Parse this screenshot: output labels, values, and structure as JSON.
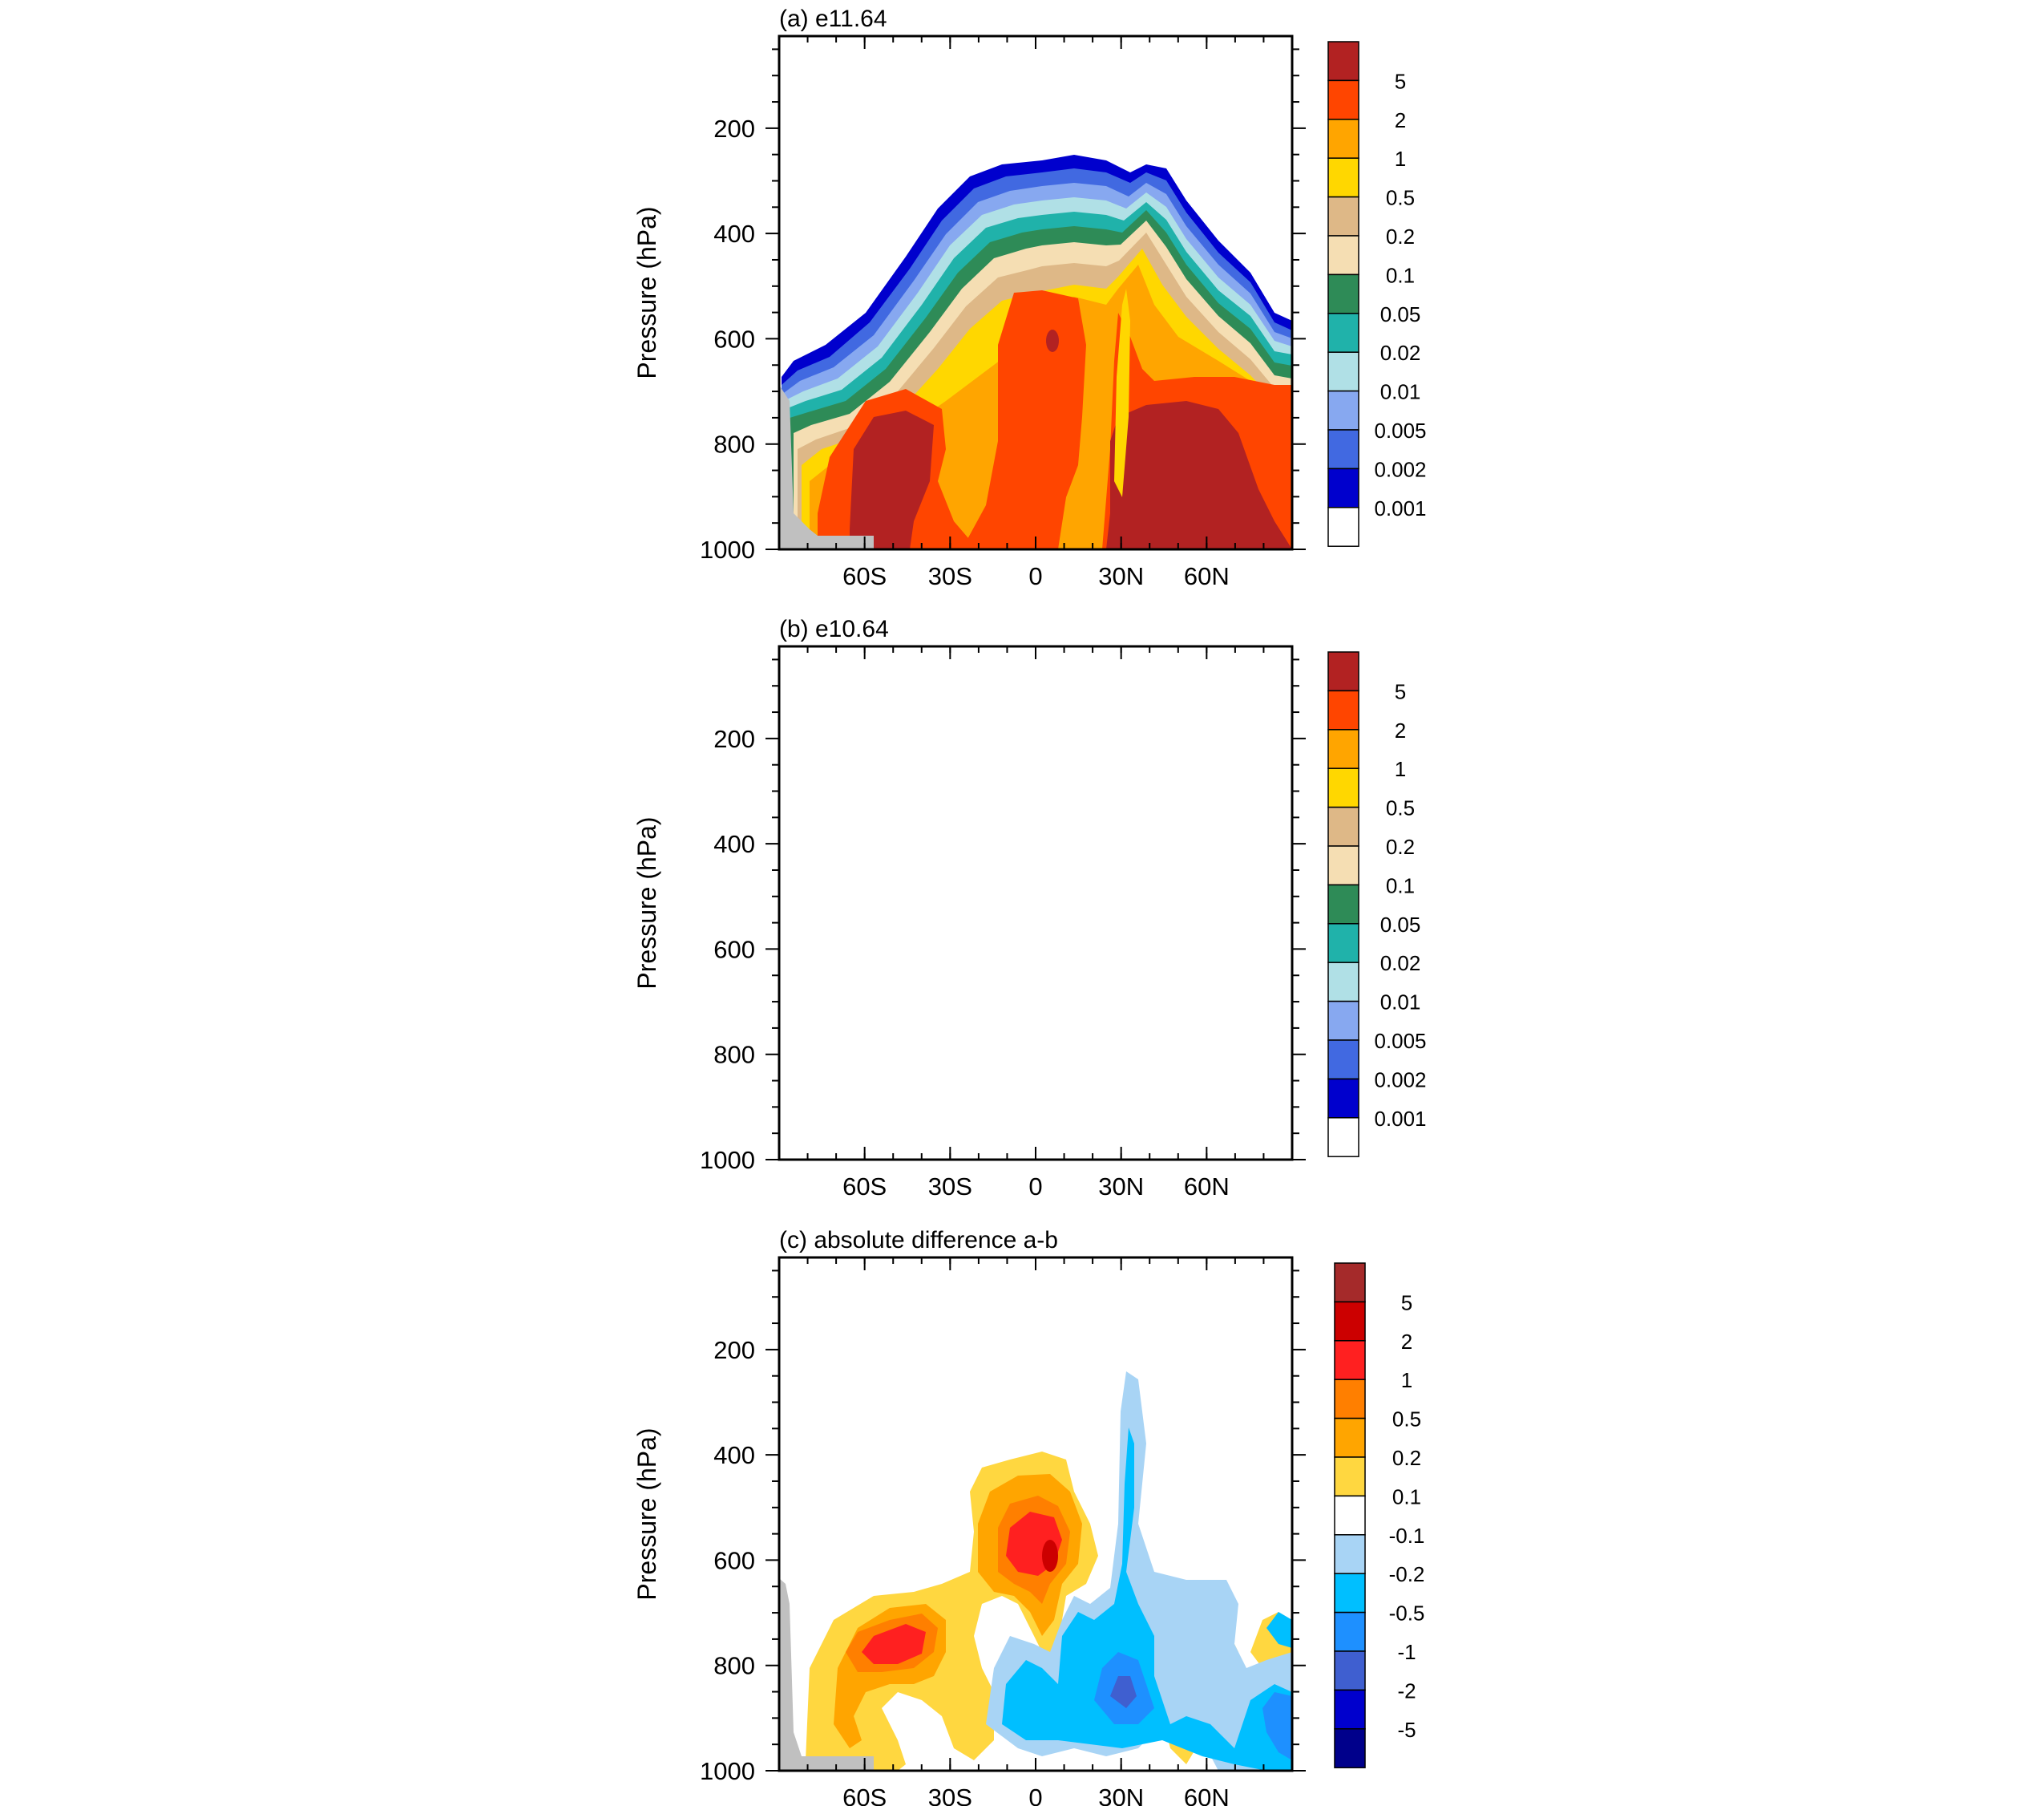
{
  "chart_data": [
    {
      "type": "heatmap",
      "panel_label": "(a) e11.64",
      "ylabel": "Pressure (hPa)",
      "yticks": [
        "200",
        "400",
        "600",
        "800",
        "1000"
      ],
      "xticks": [
        "60S",
        "30S",
        "0",
        "30N",
        "60N"
      ],
      "xtick_values": [
        -60,
        -30,
        0,
        30,
        60
      ],
      "ytick_values": [
        200,
        400,
        600,
        800,
        1000
      ],
      "xlim": [
        -90,
        90
      ],
      "ylim": [
        1000,
        25
      ],
      "colorbar": {
        "labels": [
          "5",
          "2",
          "1",
          "0.5",
          "0.2",
          "0.1",
          "0.05",
          "0.02",
          "0.01",
          "0.005",
          "0.002",
          "0.001"
        ],
        "colors": [
          "#b22222",
          "#ff4500",
          "#ffa500",
          "#ffd700",
          "#deb887",
          "#f5deb3",
          "#2e8b57",
          "#20b2aa",
          "#b0e0e6",
          "#87a8f0",
          "#4169e1",
          "#0000cd",
          "#ffffff"
        ]
      }
    },
    {
      "type": "heatmap",
      "panel_label": "(b) e10.64",
      "ylabel": "Pressure (hPa)",
      "yticks": [
        "200",
        "400",
        "600",
        "800",
        "1000"
      ],
      "xticks": [
        "60S",
        "30S",
        "0",
        "30N",
        "60N"
      ],
      "xtick_values": [
        -60,
        -30,
        0,
        30,
        60
      ],
      "ytick_values": [
        200,
        400,
        600,
        800,
        1000
      ],
      "xlim": [
        -90,
        90
      ],
      "ylim": [
        1000,
        25
      ],
      "colorbar": {
        "labels": [
          "5",
          "2",
          "1",
          "0.5",
          "0.2",
          "0.1",
          "0.05",
          "0.02",
          "0.01",
          "0.005",
          "0.002",
          "0.001"
        ],
        "colors": [
          "#b22222",
          "#ff4500",
          "#ffa500",
          "#ffd700",
          "#deb887",
          "#f5deb3",
          "#2e8b57",
          "#20b2aa",
          "#b0e0e6",
          "#87a8f0",
          "#4169e1",
          "#0000cd",
          "#ffffff"
        ]
      }
    },
    {
      "type": "heatmap",
      "panel_label": "(c) absolute difference a-b",
      "ylabel": "Pressure (hPa)",
      "yticks": [
        "200",
        "400",
        "600",
        "800",
        "1000"
      ],
      "xticks": [
        "60S",
        "30S",
        "0",
        "30N",
        "60N"
      ],
      "xtick_values": [
        -60,
        -30,
        0,
        30,
        60
      ],
      "ytick_values": [
        200,
        400,
        600,
        800,
        1000
      ],
      "xlim": [
        -90,
        90
      ],
      "ylim": [
        1000,
        25
      ],
      "colorbar": {
        "labels": [
          "5",
          "2",
          "1",
          "0.5",
          "0.2",
          "0.1",
          "-0.1",
          "-0.2",
          "-0.5",
          "-1",
          "-2",
          "-5"
        ],
        "colors": [
          "#a52a2a",
          "#cc0000",
          "#ff2020",
          "#ff7f00",
          "#ffa500",
          "#ffd740",
          "#ffffff",
          "#a8d4f5",
          "#00bfff",
          "#1e90ff",
          "#3f5fd0",
          "#0000cd",
          "#00008b"
        ]
      }
    }
  ]
}
